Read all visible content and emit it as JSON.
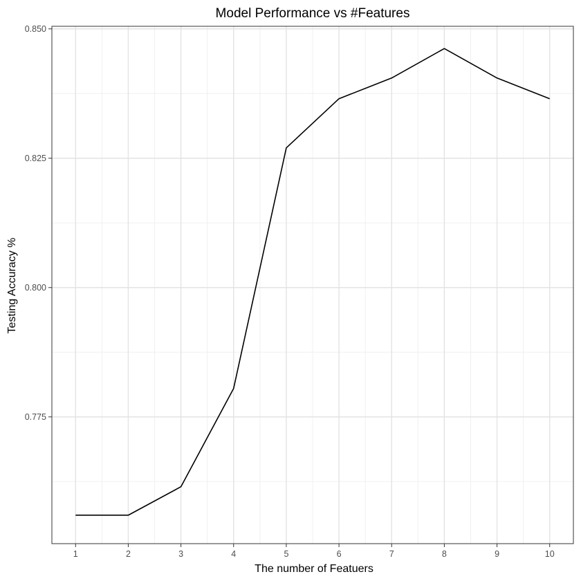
{
  "chart_data": {
    "type": "line",
    "title": "Model Performance vs #Features",
    "xlabel": "The number of Featuers",
    "ylabel": "Testing Accuracy %",
    "x": [
      1,
      2,
      3,
      4,
      5,
      6,
      7,
      8,
      9,
      10
    ],
    "series": [
      {
        "values": [
          0.756,
          0.756,
          0.7615,
          0.7805,
          0.827,
          0.8365,
          0.8405,
          0.8462,
          0.8405,
          0.8365
        ],
        "color": "#000000"
      }
    ],
    "x_ticks": [
      "1",
      "2",
      "3",
      "4",
      "5",
      "6",
      "7",
      "8",
      "9",
      "10"
    ],
    "y_ticks": [
      "0.775",
      "0.800",
      "0.825",
      "0.850"
    ],
    "xlim": [
      0.55,
      10.45
    ],
    "ylim": [
      0.7505,
      0.8505
    ],
    "grid": true,
    "legend": "none"
  }
}
